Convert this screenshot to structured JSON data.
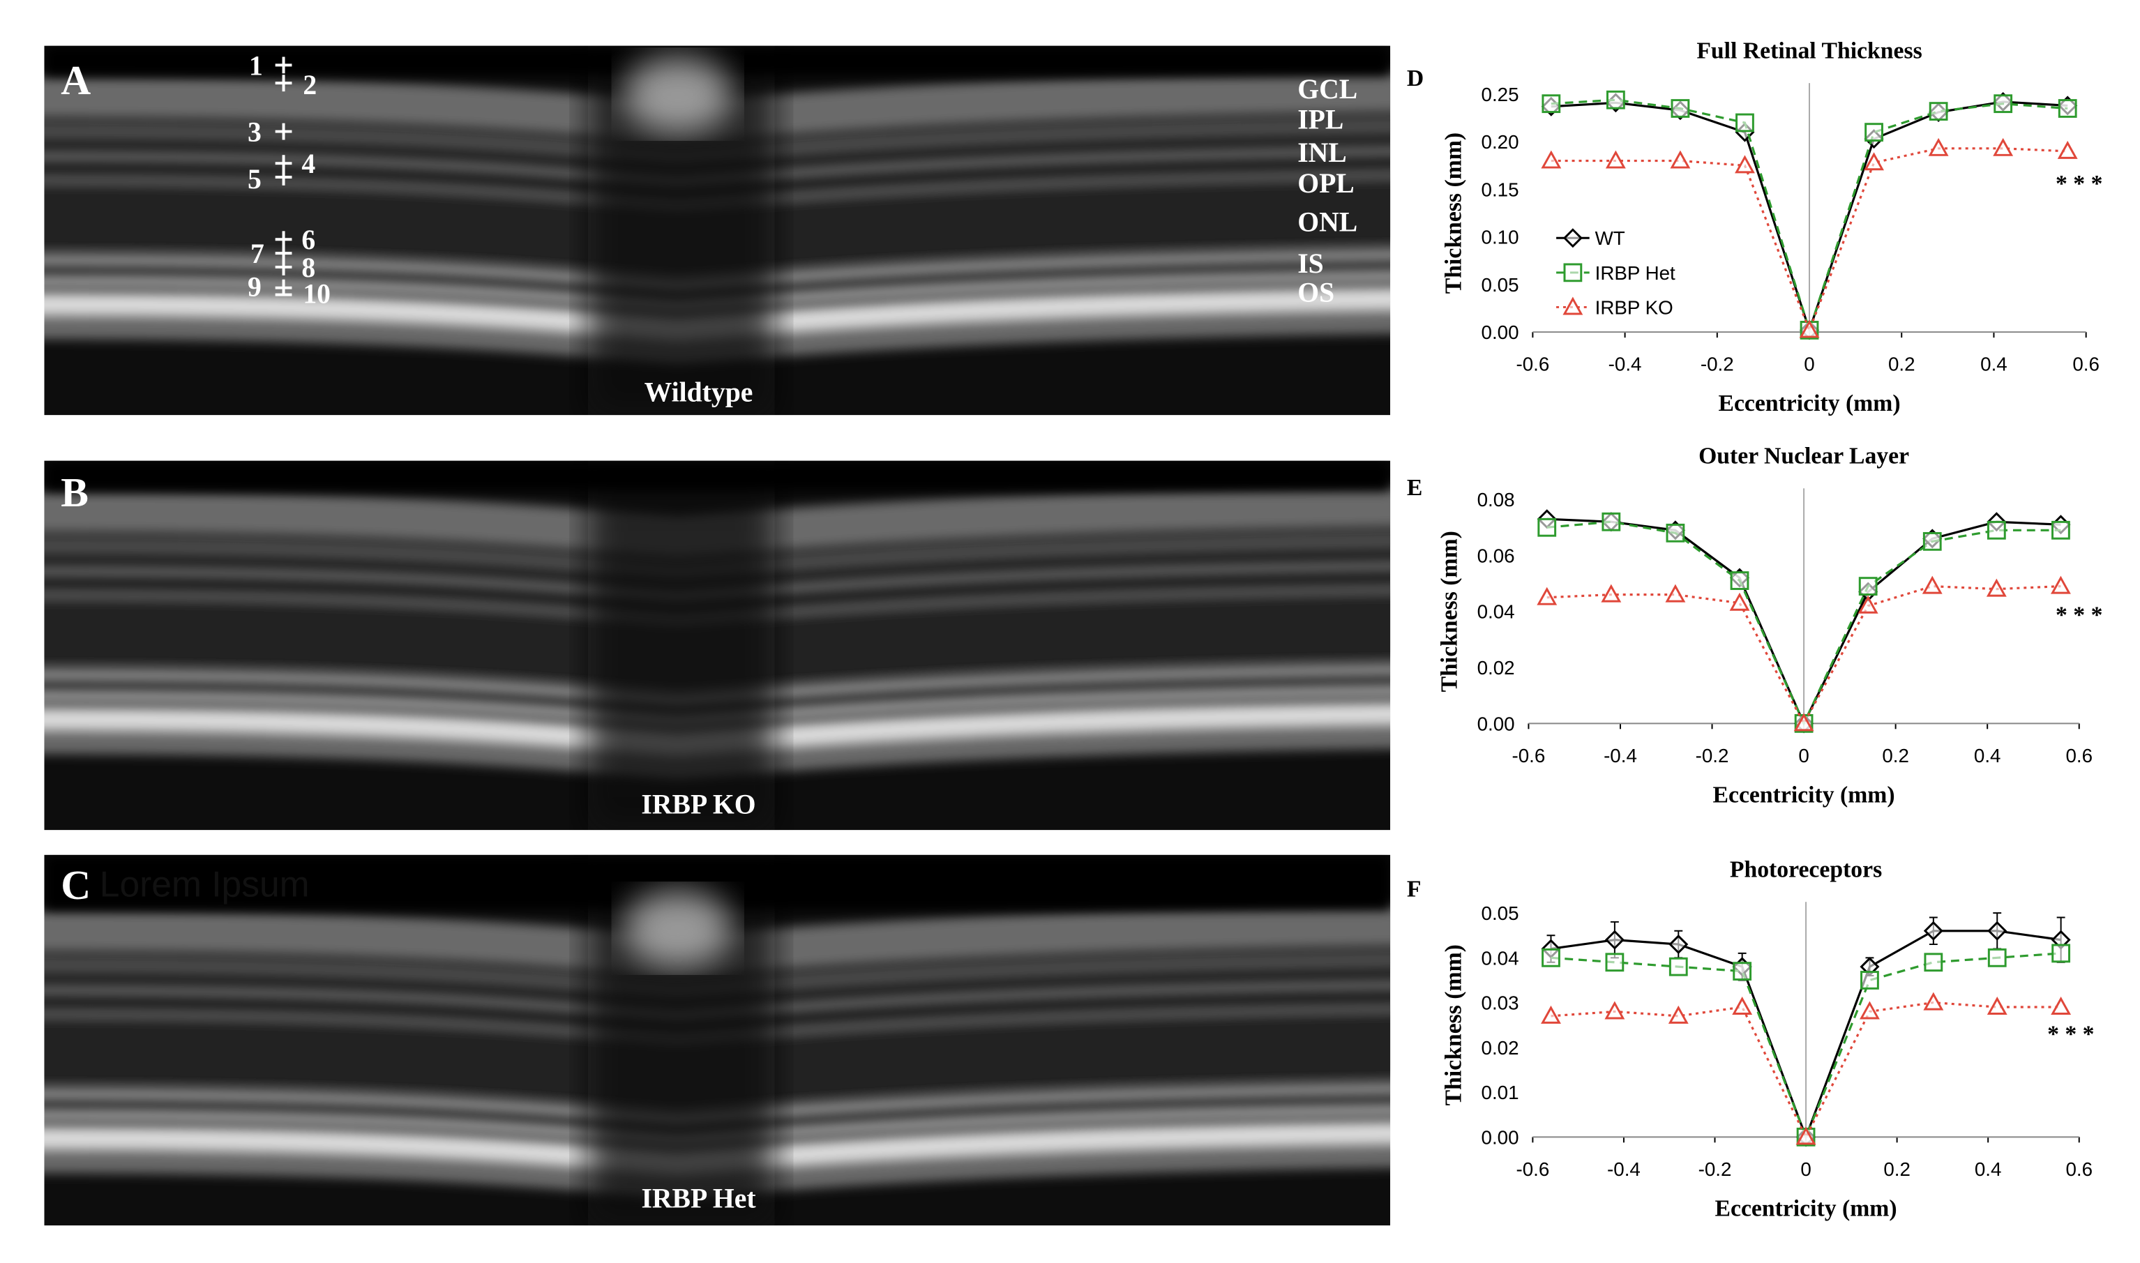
{
  "panels": [
    {
      "letter": "A",
      "caption": "Wildtype",
      "markers": [
        "1",
        "2",
        "3",
        "4",
        "5",
        "6",
        "7",
        "8",
        "9",
        "10"
      ],
      "layers": [
        "GCL",
        "IPL",
        "INL",
        "OPL",
        "ONL",
        "IS",
        "OS"
      ]
    },
    {
      "letter": "B",
      "caption": "IRBP KO"
    },
    {
      "letter": "C",
      "overlay_text": "Lorem Ipsum",
      "caption": "IRBP Het"
    }
  ],
  "chart_data": [
    {
      "type": "line",
      "letter": "D",
      "title": "Full Retinal Thickness",
      "xlabel": "Eccentricity (mm)",
      "ylabel": "Thickness (mm)",
      "x": [
        -0.56,
        -0.42,
        -0.28,
        -0.14,
        0,
        0.14,
        0.28,
        0.42,
        0.56
      ],
      "xlim": [
        -0.6,
        0.6
      ],
      "xticks": [
        -0.6,
        -0.4,
        -0.2,
        0,
        0.2,
        0.4,
        0.6
      ],
      "ylim": [
        0,
        0.25
      ],
      "yticks": [
        {
          "value": 0,
          "label": "0.00"
        },
        {
          "value": 0.05,
          "label": "0.05"
        },
        {
          "value": 0.1,
          "label": "0.10"
        },
        {
          "value": 0.15,
          "label": "0.15"
        },
        {
          "value": 0.2,
          "label": "0.20"
        },
        {
          "value": 0.25,
          "label": "0.25"
        }
      ],
      "legend": true,
      "annotation": "* * *",
      "series": [
        {
          "name": "WT",
          "color": "#000000",
          "marker": "diamond",
          "dash": "solid",
          "values": [
            0.237,
            0.241,
            0.233,
            0.21,
            0.002,
            0.203,
            0.231,
            0.242,
            0.238
          ]
        },
        {
          "name": "IRBP Het",
          "color": "#2e9b2e",
          "marker": "square",
          "dash": "dashed",
          "values": [
            0.24,
            0.244,
            0.235,
            0.22,
            0.002,
            0.21,
            0.232,
            0.24,
            0.235
          ]
        },
        {
          "name": "IRBP KO",
          "color": "#e0473a",
          "marker": "triangle",
          "dash": "dotted",
          "values": [
            0.18,
            0.18,
            0.18,
            0.175,
            0.002,
            0.178,
            0.193,
            0.193,
            0.19
          ]
        }
      ]
    },
    {
      "type": "line",
      "letter": "E",
      "title": "Outer Nuclear Layer",
      "xlabel": "Eccentricity (mm)",
      "ylabel": "Thickness (mm)",
      "x": [
        -0.56,
        -0.42,
        -0.28,
        -0.14,
        0,
        0.14,
        0.28,
        0.42,
        0.56
      ],
      "xlim": [
        -0.6,
        0.6
      ],
      "xticks": [
        -0.6,
        -0.4,
        -0.2,
        0,
        0.2,
        0.4,
        0.6
      ],
      "ylim": [
        0,
        0.08
      ],
      "yticks": [
        {
          "value": 0,
          "label": "0.00"
        },
        {
          "value": 0.02,
          "label": "0.02"
        },
        {
          "value": 0.04,
          "label": "0.04"
        },
        {
          "value": 0.06,
          "label": "0.06"
        },
        {
          "value": 0.08,
          "label": "0.08"
        }
      ],
      "annotation": "* * *",
      "series": [
        {
          "color": "#000000",
          "marker": "diamond",
          "dash": "solid",
          "values": [
            0.073,
            0.072,
            0.069,
            0.052,
            0,
            0.047,
            0.066,
            0.072,
            0.071
          ]
        },
        {
          "color": "#2e9b2e",
          "marker": "square",
          "dash": "dashed",
          "values": [
            0.07,
            0.072,
            0.068,
            0.051,
            0,
            0.049,
            0.065,
            0.069,
            0.069
          ]
        },
        {
          "color": "#e0473a",
          "marker": "triangle",
          "dash": "dotted",
          "values": [
            0.045,
            0.046,
            0.046,
            0.043,
            0,
            0.042,
            0.049,
            0.048,
            0.049
          ]
        }
      ]
    },
    {
      "type": "line",
      "letter": "F",
      "title": "Photoreceptors",
      "xlabel": "Eccentricity (mm)",
      "ylabel": "Thickness (mm)",
      "x": [
        -0.56,
        -0.42,
        -0.28,
        -0.14,
        0,
        0.14,
        0.28,
        0.42,
        0.56
      ],
      "xlim": [
        -0.6,
        0.6
      ],
      "xticks": [
        -0.6,
        -0.4,
        -0.2,
        0,
        0.2,
        0.4,
        0.6
      ],
      "ylim": [
        0,
        0.05
      ],
      "yticks": [
        {
          "value": 0,
          "label": "0.00"
        },
        {
          "value": 0.01,
          "label": "0.01"
        },
        {
          "value": 0.02,
          "label": "0.02"
        },
        {
          "value": 0.03,
          "label": "0.03"
        },
        {
          "value": 0.04,
          "label": "0.04"
        },
        {
          "value": 0.05,
          "label": "0.05"
        }
      ],
      "annotation": "* * *",
      "series": [
        {
          "color": "#000000",
          "marker": "diamond",
          "dash": "solid",
          "values": [
            0.042,
            0.044,
            0.043,
            0.038,
            0,
            0.038,
            0.046,
            0.046,
            0.044
          ],
          "errors": [
            0.003,
            0.004,
            0.003,
            0.003,
            0.001,
            0.002,
            0.003,
            0.004,
            0.005
          ]
        },
        {
          "color": "#2e9b2e",
          "marker": "square",
          "dash": "dashed",
          "values": [
            0.04,
            0.039,
            0.038,
            0.037,
            0,
            0.035,
            0.039,
            0.04,
            0.041
          ]
        },
        {
          "color": "#e0473a",
          "marker": "triangle",
          "dash": "dotted",
          "values": [
            0.027,
            0.028,
            0.027,
            0.029,
            0,
            0.028,
            0.03,
            0.029,
            0.029
          ]
        }
      ]
    }
  ]
}
